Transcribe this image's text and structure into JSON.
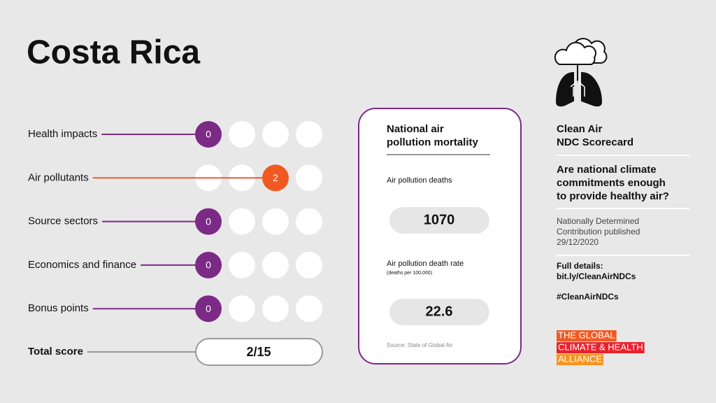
{
  "header": {
    "title": "Costa Rica"
  },
  "scores": {
    "rows": [
      {
        "label": "Health impacts",
        "score": 0,
        "color": "#7b2a86"
      },
      {
        "label": "Air pollutants",
        "score": 2,
        "color": "#f05a22"
      },
      {
        "label": "Source sectors",
        "score": 0,
        "color": "#7b2a86"
      },
      {
        "label": "Economics and finance",
        "score": 0,
        "color": "#7b2a86"
      },
      {
        "label": "Bonus points",
        "score": 0,
        "color": "#7b2a86"
      }
    ],
    "total": {
      "label": "Total score",
      "value": "2/15"
    }
  },
  "mortality": {
    "heading": [
      "National air",
      "pollution mortality"
    ],
    "deaths": {
      "label": "Air pollution deaths",
      "value": 1070
    },
    "rate": {
      "label": "Air pollution death rate",
      "unit": "(deaths per 100,000)",
      "value": 22.6
    },
    "source": "Source: State of Global Air"
  },
  "sidebar": {
    "title": [
      "Clean Air",
      "NDC Scorecard"
    ],
    "question": [
      "Are national climate",
      "commitments enough",
      "to provide healthy air?"
    ],
    "published": [
      "Nationally Determined",
      "Contribution published",
      "29/12/2020"
    ],
    "details": [
      "Full details:",
      "bit.ly/CleanAirNDCs"
    ],
    "hashtag": "#CleanAirNDCs",
    "logo": [
      "THE GLOBAL",
      "CLIMATE & HEALTH",
      "ALLIANCE"
    ]
  }
}
